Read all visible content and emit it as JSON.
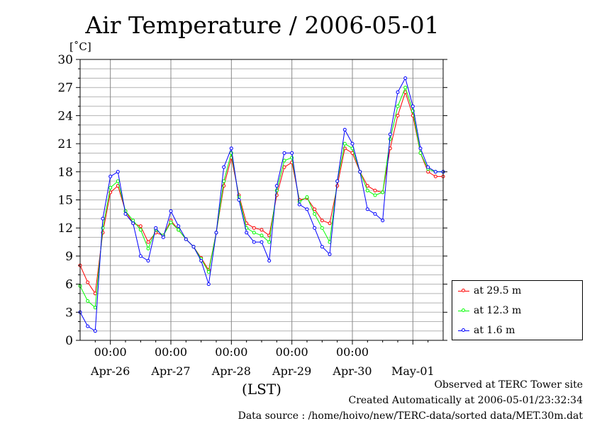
{
  "chart_data": {
    "type": "line",
    "title": "Air Temperature / 2006-05-01",
    "yunit": "[˚C]",
    "xlabel": "(LST)",
    "ylim": [
      0,
      30
    ],
    "yticks": [
      0,
      3,
      6,
      9,
      12,
      15,
      18,
      21,
      24,
      27,
      30
    ],
    "x_range_hours": [
      0,
      144
    ],
    "x_start": "2006-04-25 12:00",
    "midnight_ticks": [
      {
        "time_label": "00:00",
        "date_label": "Apr-26"
      },
      {
        "time_label": "00:00",
        "date_label": "Apr-27"
      },
      {
        "time_label": "00:00",
        "date_label": "Apr-28"
      },
      {
        "time_label": "00:00",
        "date_label": "Apr-29"
      },
      {
        "time_label": "00:00",
        "date_label": "Apr-30"
      },
      {
        "time_label": "",
        "date_label": "May-01"
      }
    ],
    "grid": true,
    "legend_position": "bottom-right outside",
    "x": [
      0,
      3,
      6,
      9,
      12,
      15,
      18,
      21,
      24,
      27,
      30,
      33,
      36,
      39,
      42,
      45,
      48,
      51,
      54,
      57,
      60,
      63,
      66,
      69,
      72,
      75,
      78,
      81,
      84,
      87,
      90,
      93,
      96,
      99,
      102,
      105,
      108,
      111,
      114,
      117,
      120,
      123,
      126,
      129,
      132,
      135,
      138,
      141,
      144
    ],
    "series": [
      {
        "name": "at 29.5 m",
        "color": "#ff0000",
        "values": [
          8,
          6.2,
          5,
          11.5,
          15.8,
          16.5,
          13.8,
          12.5,
          12.2,
          10.5,
          11.5,
          11.2,
          12.8,
          11.8,
          10.8,
          10,
          8.8,
          7.5,
          11.5,
          16.5,
          19.5,
          15.5,
          12.5,
          12,
          11.8,
          11.2,
          15.5,
          18.5,
          19,
          15,
          15.2,
          14,
          12.8,
          12.5,
          16.5,
          20.5,
          20,
          18,
          16.5,
          16,
          15.8,
          20.5,
          24,
          26.5,
          24,
          20,
          18,
          17.5,
          17.5
        ]
      },
      {
        "name": "at 12.3 m",
        "color": "#00ff00",
        "values": [
          5.8,
          4.2,
          3.5,
          12,
          16.3,
          17,
          13.8,
          12.8,
          11.8,
          9.8,
          11.8,
          11.2,
          12.6,
          11.8,
          10.8,
          10,
          8.7,
          7.3,
          11.5,
          17,
          20,
          15.3,
          12,
          11.5,
          11.2,
          10.5,
          16,
          19.2,
          19.5,
          14.8,
          15.3,
          13.5,
          12,
          10.5,
          17,
          21,
          20.5,
          18,
          16,
          15.5,
          15.8,
          21.5,
          25,
          27,
          24.5,
          20,
          18.3,
          18,
          18
        ]
      },
      {
        "name": "at 1.6 m",
        "color": "#0000ff",
        "values": [
          3,
          1.5,
          1,
          13,
          17.5,
          18,
          13.5,
          12.5,
          9,
          8.5,
          12,
          11,
          13.8,
          12.2,
          10.8,
          10,
          8.5,
          6,
          11.5,
          18.5,
          20.5,
          15,
          11.5,
          10.5,
          10.5,
          8.5,
          16.5,
          20,
          20,
          14.5,
          14,
          12,
          10,
          9.2,
          17,
          22.5,
          21,
          18,
          14,
          13.5,
          12.8,
          22,
          26.5,
          28,
          25,
          20.5,
          18.5,
          18,
          18
        ]
      }
    ]
  },
  "footer": {
    "line1": "Observed at TERC Tower site",
    "line2": "Created Automatically at 2006-05-01/23:32:34",
    "line3": "Data source : /home/hoivo/new/TERC-data/sorted  data/MET.30m.dat"
  }
}
